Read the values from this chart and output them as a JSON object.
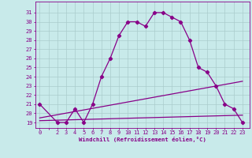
{
  "xlabel": "Windchill (Refroidissement éolien,°C)",
  "bg_color": "#c8eaea",
  "grid_color": "#b8d8d8",
  "line_color": "#880088",
  "x_ticks": [
    0,
    2,
    3,
    4,
    5,
    6,
    7,
    8,
    9,
    10,
    11,
    12,
    13,
    14,
    15,
    16,
    17,
    18,
    19,
    20,
    21,
    22,
    23
  ],
  "y_ticks": [
    19,
    20,
    21,
    22,
    23,
    24,
    25,
    26,
    27,
    28,
    29,
    30,
    31
  ],
  "ylim": [
    18.4,
    32.2
  ],
  "xlim": [
    -0.5,
    23.8
  ],
  "curve1_x": [
    0,
    2,
    3,
    4,
    5,
    6,
    7,
    8,
    9,
    10,
    11,
    12,
    13,
    14,
    15,
    16,
    17,
    18,
    19,
    20,
    21,
    22,
    23
  ],
  "curve1_y": [
    21,
    19,
    19,
    20.5,
    19,
    21,
    24,
    26,
    28.5,
    30,
    30,
    29.5,
    31,
    31,
    30.5,
    30,
    28,
    25,
    24.5,
    23,
    21,
    20.5,
    19
  ],
  "curve2_x": [
    0,
    23
  ],
  "curve2_y": [
    19.5,
    23.5
  ],
  "curve3_x": [
    0,
    23
  ],
  "curve3_y": [
    19.2,
    19.8
  ],
  "marker": "D",
  "markersize": 2.2,
  "linewidth": 0.9,
  "tick_fontsize": 5.0,
  "xlabel_fontsize": 5.2
}
